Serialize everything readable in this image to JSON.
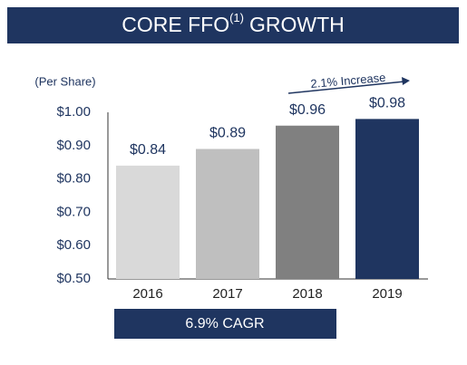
{
  "chart_data": {
    "type": "bar",
    "title": "CORE FFO",
    "title_superscript": "(1)",
    "title_end": "GROWTH",
    "y_label": "(Per Share)",
    "categories": [
      "2016",
      "2017",
      "2018",
      "2019"
    ],
    "values": [
      0.84,
      0.89,
      0.96,
      0.98
    ],
    "value_labels": [
      "$0.84",
      "$0.89",
      "$0.96",
      "$0.98"
    ],
    "colors": [
      "#d9d9d9",
      "#bfbfbf",
      "#808080",
      "#1f3560"
    ],
    "ylim": [
      0.5,
      1.0
    ],
    "yticks": [
      {
        "value": 0.5,
        "label": "$0.50"
      },
      {
        "value": 0.6,
        "label": "$0.60"
      },
      {
        "value": 0.7,
        "label": "$0.70"
      },
      {
        "value": 0.8,
        "label": "$0.80"
      },
      {
        "value": 0.9,
        "label": "$0.90"
      },
      {
        "value": 1.0,
        "label": "$1.00"
      }
    ],
    "grid": false,
    "annotation": "2.1% Increase",
    "footer": "6.9% CAGR"
  }
}
